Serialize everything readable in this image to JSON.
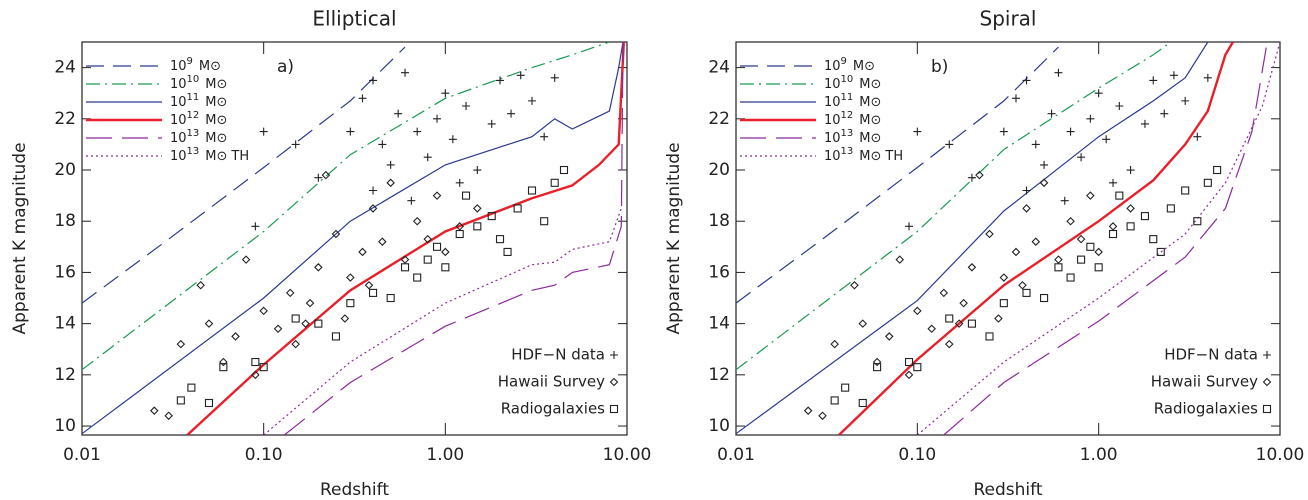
{
  "chart_data": [
    {
      "type": "scatter-line",
      "title": "Elliptical",
      "panel_label": "a)",
      "xlabel": "Redshift",
      "ylabel": "Apparent K magnitude",
      "log_x": true,
      "xlim": [
        0.01,
        10
      ],
      "ylim": [
        9.65,
        25
      ],
      "xticks": [
        {
          "value": 0.01,
          "label": "0.01"
        },
        {
          "value": 0.1,
          "label": "0.10"
        },
        {
          "value": 1,
          "label": "1.00"
        },
        {
          "value": 10,
          "label": "10.00"
        }
      ],
      "yticks": [
        10,
        12,
        14,
        16,
        18,
        20,
        22,
        24
      ],
      "lines": [
        {
          "base": "10",
          "exp": "9",
          "unit": "M⊙",
          "color": "#2a3a8f",
          "style": "dashed",
          "x": [
            0.01,
            0.03,
            0.1,
            0.3,
            0.6
          ],
          "values": [
            14.8,
            17.3,
            20.1,
            22.7,
            24.8
          ]
        },
        {
          "base": "10",
          "exp": "10",
          "unit": "M⊙",
          "color": "#1a9a50",
          "style": "dashdot",
          "x": [
            0.01,
            0.1,
            0.3,
            1,
            3,
            5,
            8
          ],
          "values": [
            12.2,
            17.6,
            20.6,
            22.8,
            24.0,
            24.5,
            25.0
          ]
        },
        {
          "base": "10",
          "exp": "11",
          "unit": "M⊙",
          "color": "#2a3a8f",
          "style": "solid",
          "x": [
            0.01,
            0.1,
            0.3,
            1,
            3,
            4,
            5,
            8,
            9,
            9.5
          ],
          "values": [
            9.7,
            15.0,
            18.0,
            20.2,
            21.3,
            22.0,
            21.6,
            22.3,
            24,
            25
          ]
        },
        {
          "base": "10",
          "exp": "12",
          "unit": "M⊙",
          "color": "#e8202a",
          "style": "thick",
          "x": [
            0.038,
            0.1,
            0.3,
            1,
            3,
            5,
            7,
            9,
            9.6
          ],
          "values": [
            9.65,
            12.4,
            15.3,
            17.6,
            18.9,
            19.4,
            20.2,
            21,
            25
          ]
        },
        {
          "base": "10",
          "exp": "13",
          "unit": "M⊙",
          "color": "#8b2a9b",
          "style": "longdash",
          "x": [
            0.13,
            0.3,
            1,
            3,
            4,
            5,
            8,
            9.3,
            9.5
          ],
          "values": [
            9.65,
            11.7,
            13.9,
            15.3,
            15.5,
            16.0,
            16.3,
            17.8,
            25
          ]
        },
        {
          "base": "10",
          "exp": "13",
          "unit": "M⊙",
          "note": "TH",
          "color": "#8b2a9b",
          "style": "dotted",
          "x": [
            0.1,
            0.3,
            1,
            3,
            4,
            5,
            8,
            9.3
          ],
          "values": [
            9.65,
            12.5,
            14.8,
            16.3,
            16.4,
            16.9,
            17.2,
            18.5
          ]
        }
      ],
      "series": [
        {
          "name": "HDF−N data",
          "marker": "plus",
          "x": [
            0.1,
            0.15,
            0.2,
            0.3,
            0.35,
            0.4,
            0.45,
            0.5,
            0.55,
            0.6,
            0.7,
            0.8,
            0.9,
            1.0,
            1.1,
            1.3,
            1.5,
            1.8,
            2.0,
            2.3,
            2.6,
            3.0,
            3.5,
            4.0,
            0.09,
            0.4,
            0.65,
            1.2
          ],
          "values": [
            21.5,
            21.0,
            19.7,
            21.5,
            22.8,
            23.5,
            21.0,
            20.2,
            22.2,
            23.8,
            21.5,
            20.5,
            22.0,
            23.0,
            21.2,
            22.5,
            20.0,
            21.8,
            23.5,
            22.2,
            23.7,
            22.7,
            21.3,
            23.6,
            17.8,
            19.2,
            18.8,
            19.5
          ]
        },
        {
          "name": "Hawaii Survey",
          "marker": "diamond",
          "x": [
            0.025,
            0.03,
            0.035,
            0.045,
            0.05,
            0.06,
            0.07,
            0.08,
            0.09,
            0.1,
            0.12,
            0.14,
            0.17,
            0.2,
            0.22,
            0.25,
            0.3,
            0.35,
            0.4,
            0.45,
            0.5,
            0.6,
            0.7,
            0.8,
            0.9,
            1.0,
            1.2,
            1.5,
            0.15,
            0.18,
            0.28,
            0.38
          ],
          "values": [
            10.6,
            10.4,
            13.2,
            15.5,
            14.0,
            12.5,
            13.5,
            16.5,
            12.0,
            14.5,
            13.8,
            15.2,
            14.0,
            16.2,
            19.8,
            17.5,
            15.8,
            16.8,
            18.5,
            17.2,
            19.5,
            16.5,
            18.0,
            17.3,
            19.0,
            16.8,
            17.8,
            18.5,
            13.2,
            14.8,
            14.2,
            15.5
          ]
        },
        {
          "name": "Radiogalaxies",
          "marker": "square",
          "x": [
            0.035,
            0.04,
            0.05,
            0.06,
            0.09,
            0.1,
            0.15,
            0.2,
            0.25,
            0.3,
            0.4,
            0.5,
            0.6,
            0.7,
            0.8,
            0.9,
            1.0,
            1.2,
            1.5,
            1.8,
            2.0,
            2.5,
            3.0,
            3.5,
            4.0,
            4.5,
            2.2,
            1.3
          ],
          "values": [
            11.0,
            11.5,
            10.9,
            12.3,
            12.5,
            12.3,
            14.2,
            14.0,
            13.5,
            14.8,
            15.2,
            15.0,
            16.2,
            15.8,
            16.5,
            17.0,
            16.2,
            17.5,
            17.8,
            18.2,
            17.3,
            18.5,
            19.2,
            18.0,
            19.5,
            20.0,
            16.8,
            19.0
          ]
        }
      ]
    },
    {
      "type": "scatter-line",
      "title": "Spiral",
      "panel_label": "b)",
      "xlabel": "Redshift",
      "ylabel": "Apparent K magnitude",
      "log_x": true,
      "xlim": [
        0.01,
        10
      ],
      "ylim": [
        9.65,
        25
      ],
      "xticks": [
        {
          "value": 0.01,
          "label": "0.01"
        },
        {
          "value": 0.1,
          "label": "0.10"
        },
        {
          "value": 1,
          "label": "1.00"
        },
        {
          "value": 10,
          "label": "10.00"
        }
      ],
      "yticks": [
        10,
        12,
        14,
        16,
        18,
        20,
        22,
        24
      ],
      "lines": [
        {
          "base": "10",
          "exp": "9",
          "unit": "M⊙",
          "color": "#2a3a8f",
          "style": "dashed",
          "x": [
            0.01,
            0.03,
            0.1,
            0.3,
            0.6
          ],
          "values": [
            14.8,
            17.3,
            20.1,
            22.7,
            24.8
          ]
        },
        {
          "base": "10",
          "exp": "10",
          "unit": "M⊙",
          "color": "#1a9a50",
          "style": "dashdot",
          "x": [
            0.01,
            0.1,
            0.3,
            1,
            2,
            2.5
          ],
          "values": [
            12.2,
            17.6,
            20.8,
            23.2,
            24.5,
            25
          ]
        },
        {
          "base": "10",
          "exp": "11",
          "unit": "M⊙",
          "color": "#2a3a8f",
          "style": "solid",
          "x": [
            0.01,
            0.1,
            0.3,
            1,
            2,
            3,
            4
          ],
          "values": [
            9.7,
            14.9,
            18.4,
            21.3,
            22.7,
            23.6,
            25
          ]
        },
        {
          "base": "10",
          "exp": "12",
          "unit": "M⊙",
          "color": "#e8202a",
          "style": "thick",
          "x": [
            0.037,
            0.1,
            0.3,
            1,
            2,
            3,
            4,
            5,
            5.5
          ],
          "values": [
            9.65,
            12.6,
            15.5,
            18.0,
            19.6,
            21.0,
            22.3,
            24.5,
            25
          ]
        },
        {
          "base": "10",
          "exp": "13",
          "unit": "M⊙",
          "color": "#8b2a9b",
          "style": "longdash",
          "x": [
            0.14,
            0.3,
            1,
            3,
            5,
            7,
            8.5
          ],
          "values": [
            9.65,
            11.7,
            14.1,
            16.6,
            18.5,
            21.5,
            25
          ]
        },
        {
          "base": "10",
          "exp": "13",
          "unit": "M⊙",
          "note": "TH",
          "color": "#8b2a9b",
          "style": "dotted",
          "x": [
            0.1,
            0.3,
            1,
            3,
            5,
            8,
            10
          ],
          "values": [
            9.65,
            12.5,
            15.0,
            17.5,
            19.5,
            22.5,
            25
          ]
        }
      ],
      "series": [
        {
          "name": "HDF−N data",
          "marker": "plus",
          "x": [
            0.1,
            0.15,
            0.2,
            0.3,
            0.35,
            0.4,
            0.45,
            0.5,
            0.55,
            0.6,
            0.7,
            0.8,
            0.9,
            1.0,
            1.1,
            1.3,
            1.5,
            1.8,
            2.0,
            2.3,
            2.6,
            3.0,
            3.5,
            4.0,
            0.09,
            0.4,
            0.65,
            1.2
          ],
          "values": [
            21.5,
            21.0,
            19.7,
            21.5,
            22.8,
            23.5,
            21.0,
            20.2,
            22.2,
            23.8,
            21.5,
            20.5,
            22.0,
            23.0,
            21.2,
            22.5,
            20.0,
            21.8,
            23.5,
            22.2,
            23.7,
            22.7,
            21.3,
            23.6,
            17.8,
            19.2,
            18.8,
            19.5
          ]
        },
        {
          "name": "Hawaii Survey",
          "marker": "diamond",
          "x": [
            0.025,
            0.03,
            0.035,
            0.045,
            0.05,
            0.06,
            0.07,
            0.08,
            0.09,
            0.1,
            0.12,
            0.14,
            0.17,
            0.2,
            0.22,
            0.25,
            0.3,
            0.35,
            0.4,
            0.45,
            0.5,
            0.6,
            0.7,
            0.8,
            0.9,
            1.0,
            1.2,
            1.5,
            0.15,
            0.18,
            0.28,
            0.38
          ],
          "values": [
            10.6,
            10.4,
            13.2,
            15.5,
            14.0,
            12.5,
            13.5,
            16.5,
            12.0,
            14.5,
            13.8,
            15.2,
            14.0,
            16.2,
            19.8,
            17.5,
            15.8,
            16.8,
            18.5,
            17.2,
            19.5,
            16.5,
            18.0,
            17.3,
            19.0,
            16.8,
            17.8,
            18.5,
            13.2,
            14.8,
            14.2,
            15.5
          ]
        },
        {
          "name": "Radiogalaxies",
          "marker": "square",
          "x": [
            0.035,
            0.04,
            0.05,
            0.06,
            0.09,
            0.1,
            0.15,
            0.2,
            0.25,
            0.3,
            0.4,
            0.5,
            0.6,
            0.7,
            0.8,
            0.9,
            1.0,
            1.2,
            1.5,
            1.8,
            2.0,
            2.5,
            3.0,
            3.5,
            4.0,
            4.5,
            2.2,
            1.3
          ],
          "values": [
            11.0,
            11.5,
            10.9,
            12.3,
            12.5,
            12.3,
            14.2,
            14.0,
            13.5,
            14.8,
            15.2,
            15.0,
            16.2,
            15.8,
            16.5,
            17.0,
            16.2,
            17.5,
            17.8,
            18.2,
            17.3,
            18.5,
            19.2,
            18.0,
            19.5,
            20.0,
            16.8,
            19.0
          ]
        }
      ]
    }
  ]
}
